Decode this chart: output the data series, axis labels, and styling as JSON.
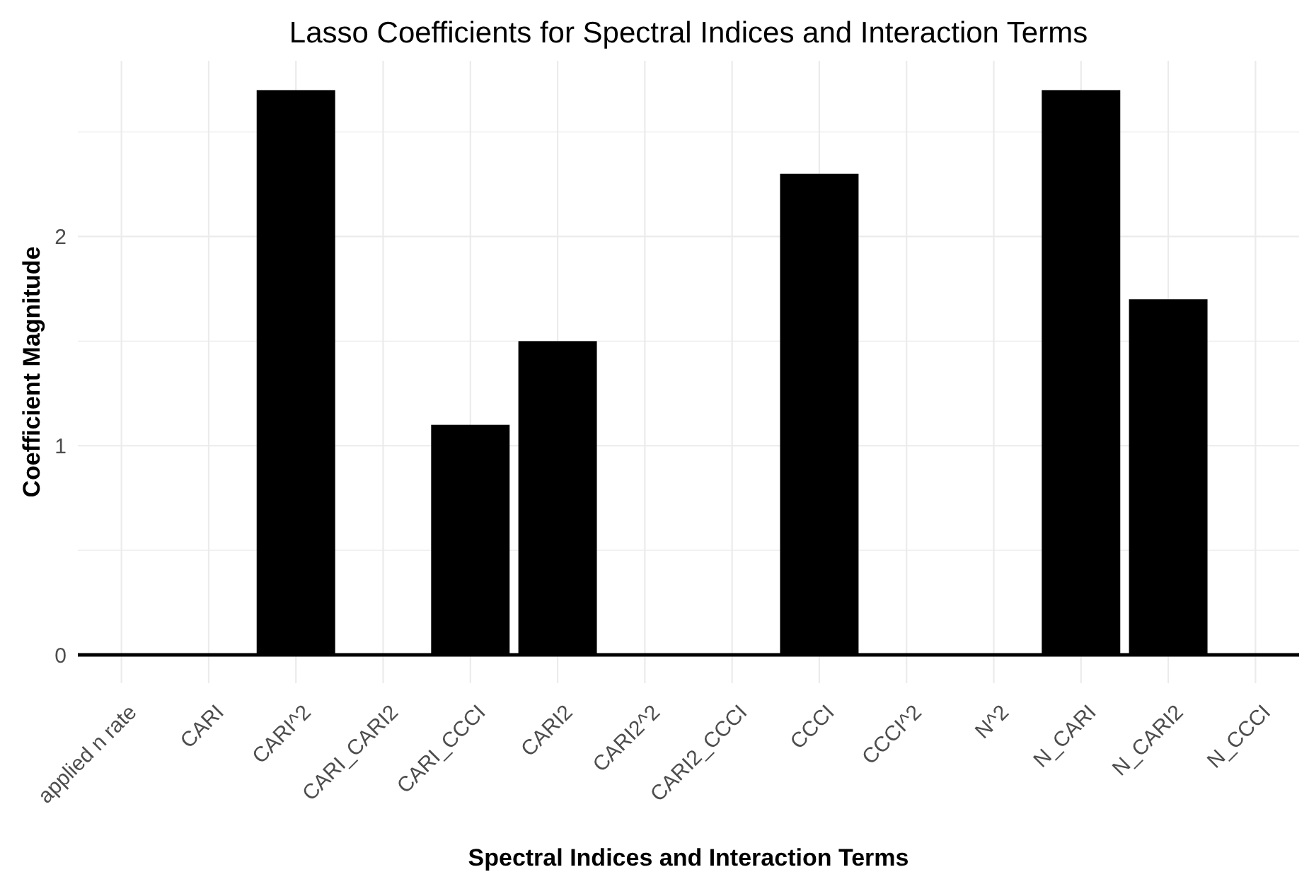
{
  "chart_data": {
    "type": "bar",
    "title": "Lasso Coefficients for Spectral Indices and Interaction Terms",
    "xlabel": "Spectral Indices and Interaction Terms",
    "ylabel": "Coefficient Magnitude",
    "categories": [
      "applied n rate",
      "CARI",
      "CARI^2",
      "CARI_CARI2",
      "CARI_CCCI",
      "CARI2",
      "CARI2^2",
      "CARI2_CCCI",
      "CCCI",
      "CCCI^2",
      "N^2",
      "N_CARI",
      "N_CARI2",
      "N_CCCI"
    ],
    "values": [
      0,
      0,
      2.7,
      0,
      1.1,
      1.5,
      0,
      0,
      2.3,
      0,
      0,
      2.7,
      1.7,
      0
    ],
    "color": "#000000",
    "ylim": [
      -0.135,
      2.84
    ],
    "yticks": [
      0,
      {
        "value": 0.5,
        "label": null
      },
      1,
      {
        "value": 1.5,
        "label": null
      },
      2,
      {
        "value": 2.5,
        "label": null
      }
    ],
    "grid": true
  }
}
